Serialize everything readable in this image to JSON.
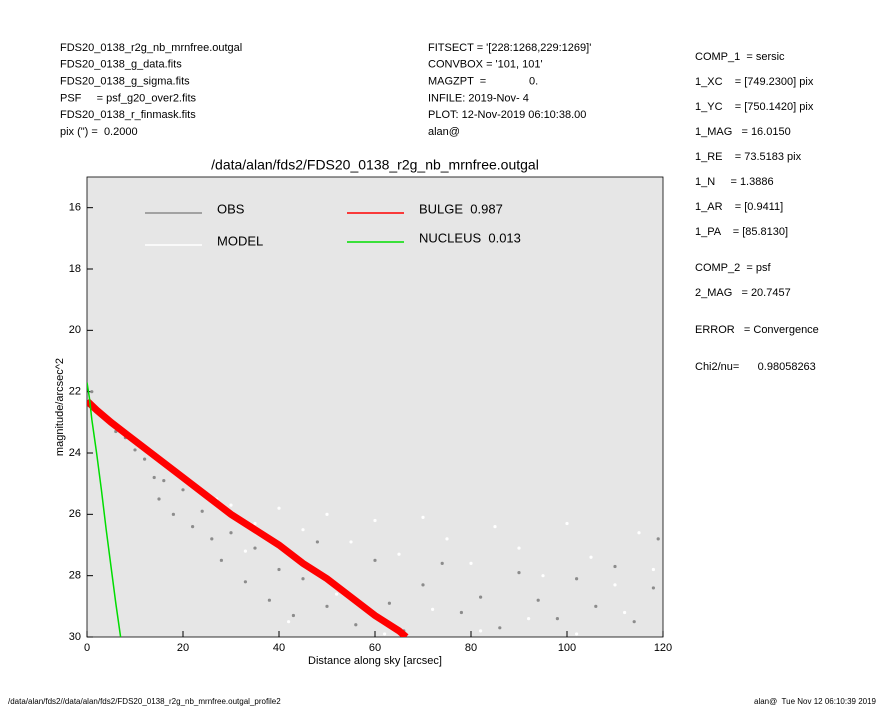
{
  "header": {
    "left": [
      "FDS20_0138_r2g_nb_mrnfree.outgal",
      "FDS20_0138_g_data.fits",
      "FDS20_0138_g_sigma.fits",
      "PSF     = psf_g20_over2.fits",
      "FDS20_0138_r_finmask.fits",
      "pix (\") =  0.2000"
    ],
    "middle": [
      "FITSECT = '[228:1268,229:1269]'",
      "CONVBOX = '101, 101'",
      "MAGZPT  =              0.",
      "INFILE: 2019-Nov- 4",
      "PLOT: 12-Nov-2019 06:10:38.00",
      "alan@"
    ],
    "right": [
      "COMP_1  = sersic",
      "1_XC    = [749.2300] pix",
      "1_YC    = [750.1420] pix",
      "1_MAG   = 16.0150",
      "1_RE    = 73.5183 pix",
      "1_N     = 1.3886",
      "1_AR    = [0.9411]",
      "1_PA    = [85.8130]",
      "COMP_2  = psf",
      "2_MAG   = 20.7457",
      "ERROR   = Convergence",
      "Chi2/nu=      0.98058263"
    ]
  },
  "footer": {
    "left": "/data/alan/fds2//data/alan/fds2/FDS20_0138_r2g_nb_mrnfree.outgal_profile2",
    "right": "alan@  Tue Nov 12 06:10:39 2019"
  },
  "chart_data": {
    "type": "scatter",
    "title": "/data/alan/fds2/FDS20_0138_r2g_nb_mrnfree.outgal",
    "x_label": "Distance along sky [arcsec]",
    "y_label": "magnitude/arcsec^2",
    "xlim": [
      0,
      120
    ],
    "xticks": [
      0,
      20,
      40,
      60,
      80,
      100,
      120
    ],
    "ylim": [
      15,
      30
    ],
    "yticks": [
      16,
      18,
      20,
      22,
      24,
      26,
      28,
      30
    ],
    "y_inverted": true,
    "background": "#e6e6e6",
    "series": [
      {
        "name": "OBS",
        "color": "#8c8c8c",
        "line": false,
        "x": [
          1,
          3,
          6,
          8,
          10,
          12,
          14,
          15,
          16,
          18,
          20,
          22,
          24,
          26,
          28,
          30,
          33,
          35,
          38,
          40,
          43,
          45,
          48,
          50,
          53,
          56,
          60,
          63,
          66,
          70,
          74,
          78,
          82,
          86,
          90,
          94,
          98,
          102,
          106,
          110,
          114,
          118,
          119
        ],
        "values": [
          22.0,
          22.8,
          23.3,
          23.5,
          23.9,
          24.2,
          24.8,
          25.5,
          24.9,
          26.0,
          25.2,
          26.4,
          25.9,
          26.8,
          27.5,
          26.6,
          28.2,
          27.1,
          28.8,
          27.8,
          29.3,
          28.1,
          26.9,
          29.0,
          28.4,
          29.6,
          27.5,
          28.9,
          29.8,
          28.3,
          27.6,
          29.2,
          28.7,
          29.7,
          27.9,
          28.8,
          29.4,
          28.1,
          29.0,
          27.7,
          29.5,
          28.4,
          26.8
        ]
      },
      {
        "name": "MODEL",
        "color": "#ffffff",
        "line": false,
        "x": [
          24,
          27,
          30,
          33,
          35,
          40,
          42,
          45,
          50,
          52,
          55,
          60,
          62,
          65,
          70,
          72,
          75,
          80,
          82,
          85,
          90,
          92,
          95,
          100,
          102,
          105,
          110,
          112,
          115,
          118
        ],
        "values": [
          25.3,
          25.5,
          25.7,
          27.2,
          26.3,
          25.8,
          29.5,
          26.5,
          26.0,
          28.6,
          26.9,
          26.2,
          29.9,
          27.3,
          26.1,
          29.1,
          26.8,
          27.6,
          29.8,
          26.4,
          27.1,
          29.4,
          28.0,
          26.3,
          29.9,
          27.4,
          28.3,
          29.2,
          26.6,
          27.8
        ]
      },
      {
        "name": "BULGE  0.987",
        "color": "#ff0000",
        "line": true,
        "x": [
          0,
          2,
          5,
          10,
          15,
          20,
          25,
          30,
          35,
          40,
          45,
          50,
          55,
          60,
          65,
          66.5
        ],
        "values": [
          22.3,
          22.6,
          23.0,
          23.6,
          24.2,
          24.8,
          25.4,
          26.0,
          26.5,
          27.0,
          27.6,
          28.1,
          28.7,
          29.3,
          29.8,
          30.0
        ]
      },
      {
        "name": "NUCLEUS  0.013",
        "color": "#00dd00",
        "line": true,
        "x": [
          0,
          0.5,
          1,
          2,
          3,
          4,
          5,
          6,
          7
        ],
        "values": [
          21.7,
          22.2,
          22.9,
          24.0,
          25.2,
          26.5,
          27.7,
          28.9,
          30.0
        ]
      }
    ]
  }
}
